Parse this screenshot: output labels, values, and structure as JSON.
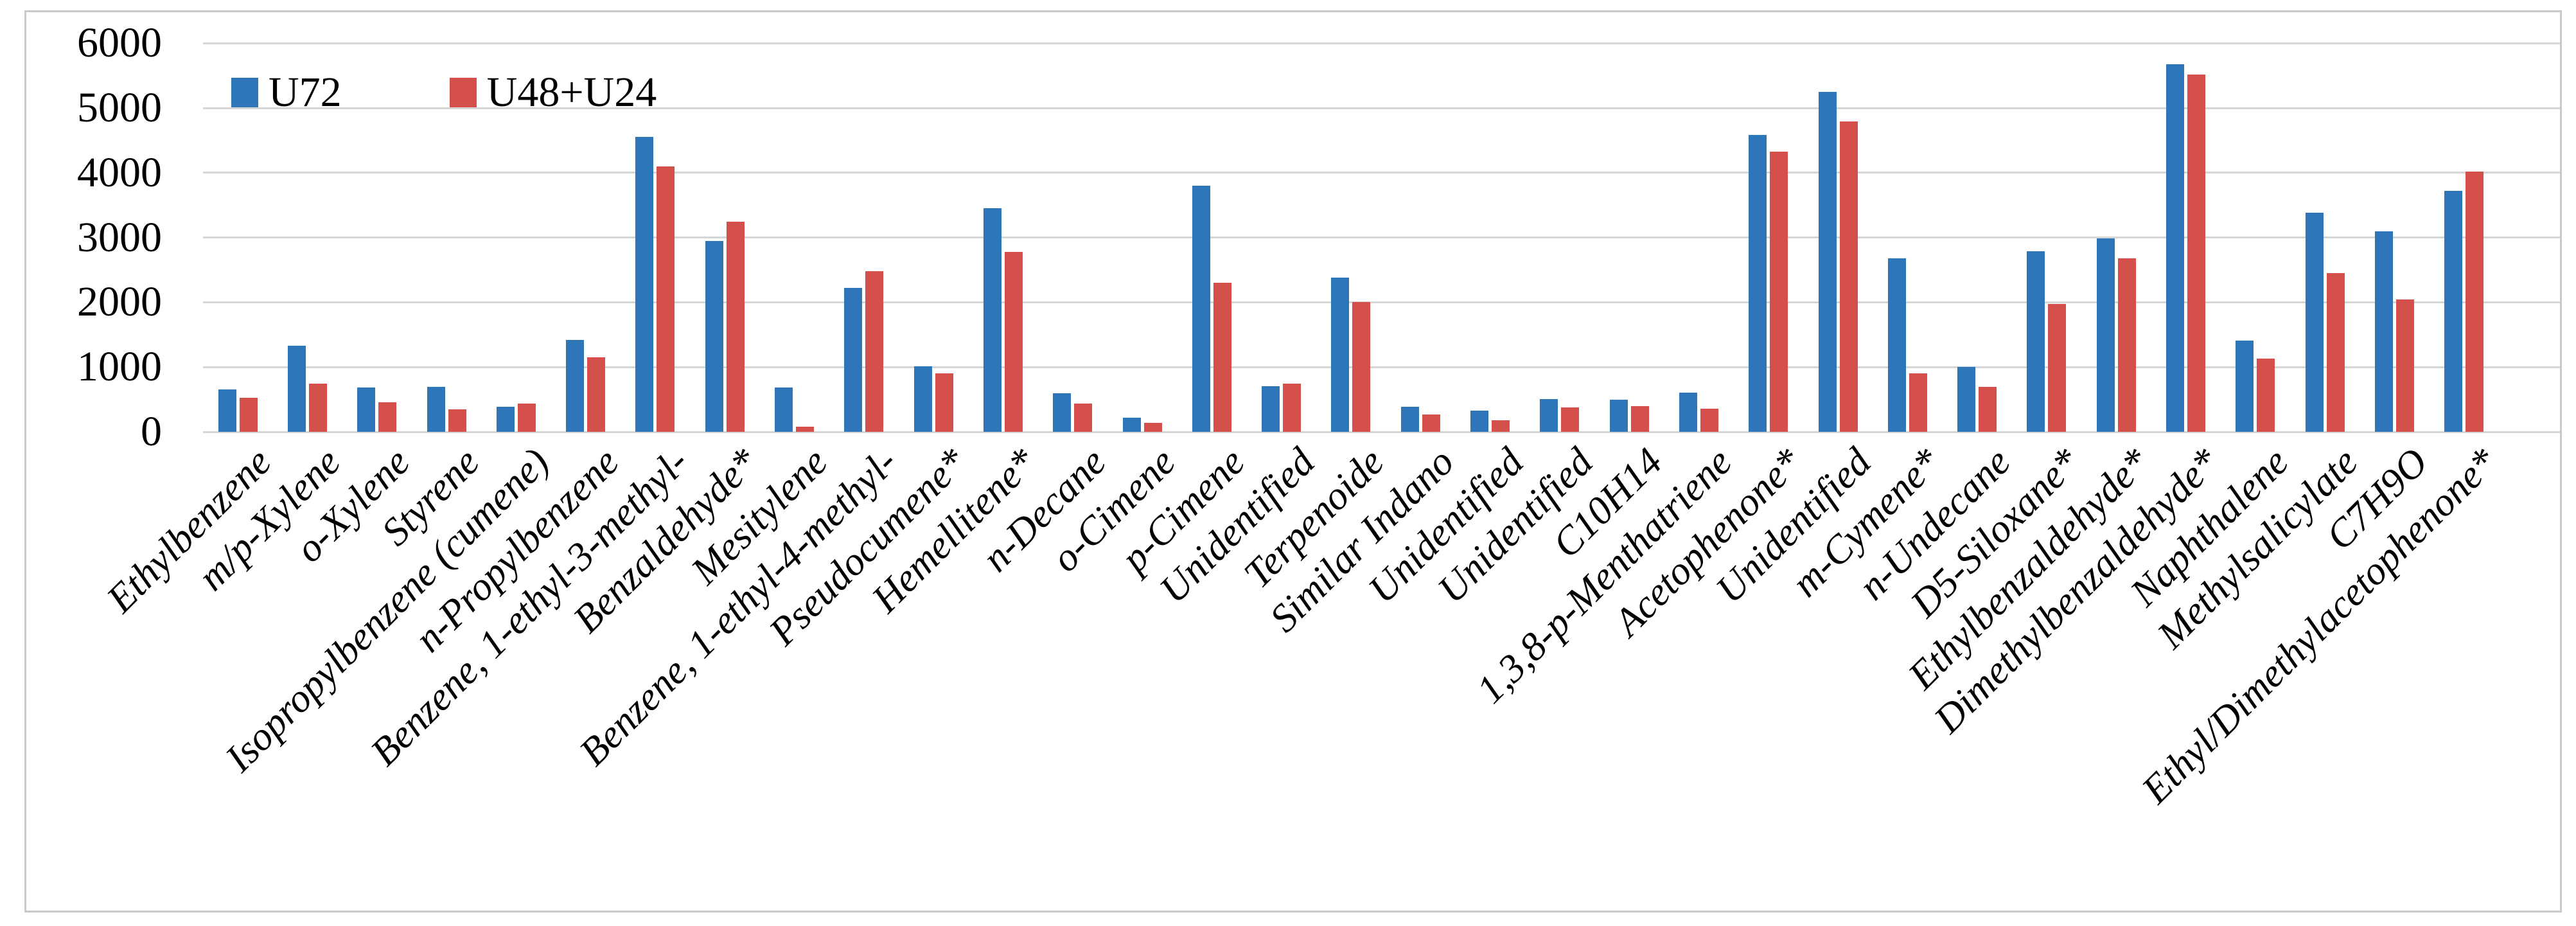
{
  "chart_data": {
    "type": "bar",
    "title": "",
    "xlabel": "",
    "ylabel": "",
    "ylim": [
      0,
      6000
    ],
    "yticks": [
      0,
      1000,
      2000,
      3000,
      4000,
      5000,
      6000
    ],
    "grid": true,
    "legend_position": "top-left-inside",
    "categories": [
      "Ethylbenzene",
      "m/p-Xylene",
      "o-Xylene",
      "Styrene",
      "Isopropylbenzene (cumene)",
      "n-Propylbenzene",
      "Benzene, 1-ethyl-3-methyl-",
      "Benzaldehyde*",
      "Mesitylene",
      "Benzene, 1-ethyl-4-methyl-",
      "Pseudocumene*",
      "Hemellitene*",
      "n-Decane",
      "o-Cimene",
      "p-Cimene",
      "Unidentified",
      "Terpenoide",
      "Similar Indano",
      "Unidentified",
      "Unidentified",
      "C10H14",
      "1,3,8-p-Menthatriene",
      "Acetophenone*",
      "Unidentified",
      "m-Cymene*",
      "n-Undecane",
      "D5-Siloxane*",
      "Ethylbenzaldehyde*",
      "Dimethylbenzaldehyde*",
      "Naphthalene",
      "Methylsalicylate",
      "C7H9O",
      "Ethyl/Dimethylacetophenone*"
    ],
    "series": [
      {
        "name": "U72",
        "color": "#2d76b8",
        "values": [
          650,
          1330,
          680,
          690,
          390,
          1420,
          4550,
          2950,
          680,
          2220,
          1010,
          3450,
          600,
          220,
          3800,
          700,
          2380,
          390,
          330,
          510,
          500,
          610,
          4580,
          5250,
          2680,
          1000,
          2790,
          2990,
          5670,
          1410,
          3380,
          3100,
          3720
        ]
      },
      {
        "name": "U48+U24",
        "color": "#d5504c",
        "values": [
          530,
          740,
          455,
          350,
          435,
          1150,
          4100,
          3240,
          80,
          2480,
          900,
          2780,
          440,
          140,
          2300,
          740,
          2000,
          270,
          180,
          380,
          400,
          355,
          4330,
          4790,
          900,
          690,
          1970,
          2680,
          5520,
          1130,
          2450,
          2040,
          4020
        ]
      }
    ]
  },
  "colors": {
    "gridline": "#d6d6d6",
    "figure_border": "#c9c9c9",
    "background": "#ffffff",
    "text": "#000000"
  }
}
